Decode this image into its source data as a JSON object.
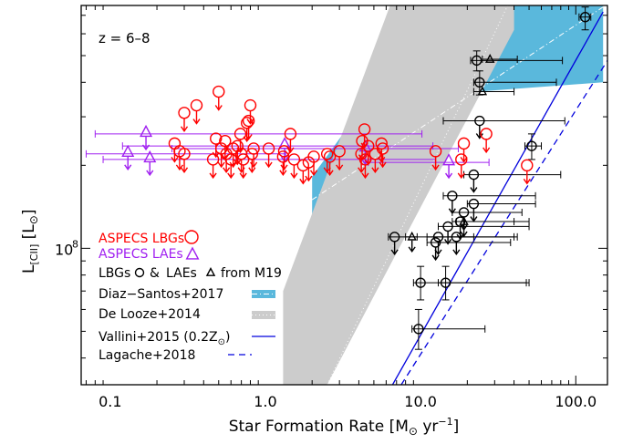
{
  "chart_data": {
    "type": "scatter",
    "panel_label": "z = 6–8",
    "xlabel": "Star Formation Rate [M☉ yr⁻¹]",
    "xlabel_parts": {
      "main": "Star Formation Rate [M",
      "sun": "⊙",
      "unit": " yr",
      "sup": "−1",
      "end": "]"
    },
    "ylabel_parts": {
      "L": "L",
      "sub": "[CII]",
      "unit": "[L",
      "sun": "⊙",
      "end": "]"
    },
    "x_scale": "log",
    "y_scale": "log",
    "xlim": [
      0.065,
      160
    ],
    "ylim": [
      32000000.0,
      760000000.0
    ],
    "x_ticks": [
      {
        "v": 0.1,
        "label": "0.1"
      },
      {
        "v": 1,
        "label": "1.0"
      },
      {
        "v": 10,
        "label": "10.0"
      },
      {
        "v": 100,
        "label": "100.0"
      }
    ],
    "y_ticks": [
      {
        "v": 100000000.0,
        "label_base": "10",
        "label_exp": "8"
      }
    ],
    "colors": {
      "lbg": "#ff0000",
      "lae": "#a020f0",
      "m19": "#000000",
      "diaz": "#5ab8dc",
      "delooze": "#cccccc",
      "vallini": "#0000dd",
      "lagache": "#0000dd"
    },
    "legend": {
      "aspecs_lbgs": "ASPECS LBGs",
      "aspecs_laes": "ASPECS LAEs",
      "m19_a": "LBGs",
      "m19_b": "&",
      "m19_c": "LAEs",
      "m19_d": "from M19",
      "diaz": "Diaz−Santos+2017",
      "delooze": "De Looze+2014",
      "vallini_a": "Vallini+2015 (0.2Z",
      "vallini_sun": "⊙",
      "vallini_b": ")",
      "lagache": "Lagache+2018"
    },
    "series": [
      {
        "name": "ASPECS LBGs",
        "marker": "circle",
        "upper_limit": true,
        "points": [
          [
            0.26,
            240000000.0
          ],
          [
            0.28,
            225000000.0
          ],
          [
            0.3,
            220000000.0
          ],
          [
            0.3,
            310000000.0
          ],
          [
            0.36,
            330000000.0
          ],
          [
            0.46,
            210000000.0
          ],
          [
            0.48,
            250000000.0
          ],
          [
            0.5,
            370000000.0
          ],
          [
            0.52,
            230000000.0
          ],
          [
            0.55,
            245000000.0
          ],
          [
            0.56,
            220000000.0
          ],
          [
            0.6,
            210000000.0
          ],
          [
            0.62,
            230000000.0
          ],
          [
            0.66,
            235000000.0
          ],
          [
            0.69,
            260000000.0
          ],
          [
            0.7,
            220000000.0
          ],
          [
            0.72,
            210000000.0
          ],
          [
            0.76,
            285000000.0
          ],
          [
            0.78,
            290000000.0
          ],
          [
            0.8,
            330000000.0
          ],
          [
            0.82,
            220000000.0
          ],
          [
            0.84,
            230000000.0
          ],
          [
            1.05,
            230000000.0
          ],
          [
            1.3,
            215000000.0
          ],
          [
            1.32,
            225000000.0
          ],
          [
            1.45,
            260000000.0
          ],
          [
            1.53,
            210000000.0
          ],
          [
            1.75,
            200000000.0
          ],
          [
            1.9,
            205000000.0
          ],
          [
            2.05,
            215000000.0
          ],
          [
            2.5,
            220000000.0
          ],
          [
            2.6,
            215000000.0
          ],
          [
            3.0,
            225000000.0
          ],
          [
            4.15,
            220000000.0
          ],
          [
            4.2,
            245000000.0
          ],
          [
            4.35,
            270000000.0
          ],
          [
            4.4,
            210000000.0
          ],
          [
            4.6,
            235000000.0
          ],
          [
            5.1,
            220000000.0
          ],
          [
            5.6,
            240000000.0
          ],
          [
            5.7,
            230000000.0
          ],
          [
            12.5,
            225000000.0
          ],
          [
            18.3,
            210000000.0
          ],
          [
            19.0,
            240000000.0
          ],
          [
            26.5,
            260000000.0
          ],
          [
            48.5,
            200000000.0
          ]
        ]
      },
      {
        "name": "ASPECS LAEs",
        "marker": "triangle",
        "upper_limit": true,
        "points": [
          [
            0.13,
            220000000.0,
            0.07,
            1.35
          ],
          [
            0.17,
            260000000.0,
            0.08,
            10.2
          ],
          [
            0.18,
            210000000.0,
            0.09,
            12.5
          ],
          [
            1.33,
            235000000.0,
            0.12,
            12.0
          ],
          [
            4.4,
            230000000.0,
            0.25,
            17.5
          ],
          [
            15.2,
            205000000.0,
            4.6,
            27.6
          ]
        ]
      },
      {
        "name": "LBGs from M19",
        "marker": "circle",
        "points": [
          {
            "x": 115,
            "y": 690000000.0,
            "xlo": 105,
            "xhi": 125,
            "yerr": [
              620000000.0,
              750000000.0
            ]
          },
          {
            "x": 23,
            "y": 480000000.0,
            "xlo": 21,
            "xhi": 82,
            "yerr": [
              440000000.0,
              520000000.0
            ]
          },
          {
            "x": 24,
            "y": 400000000.0,
            "xlo": 22,
            "xhi": 75,
            "yerr": [
              360000000.0,
              440000000.0
            ]
          },
          {
            "x": 24,
            "y": 290000000.0,
            "xlo": 14,
            "xhi": 85,
            "ul": true
          },
          {
            "x": 52,
            "y": 235000000.0,
            "xlo": 47,
            "xhi": 60,
            "yerr": [
              210000000.0,
              260000000.0
            ]
          },
          {
            "x": 22,
            "y": 185000000.0,
            "xlo": 19,
            "xhi": 80,
            "ul": true
          },
          {
            "x": 16,
            "y": 155000000.0,
            "xlo": 14,
            "xhi": 55,
            "ul": true
          },
          {
            "x": 22,
            "y": 145000000.0,
            "xlo": 20,
            "xhi": 55,
            "ul": true
          },
          {
            "x": 19,
            "y": 135000000.0,
            "xlo": 16,
            "xhi": 45,
            "ul": true
          },
          {
            "x": 18,
            "y": 125000000.0,
            "xlo": 16,
            "xhi": 50,
            "ul": true
          },
          {
            "x": 15,
            "y": 120000000.0,
            "xlo": 13,
            "xhi": 50,
            "ul": true
          },
          {
            "x": 13,
            "y": 110000000.0,
            "xlo": 11,
            "xhi": 42,
            "ul": true
          },
          {
            "x": 17,
            "y": 110000000.0,
            "xlo": 15,
            "xhi": 40,
            "ul": true
          },
          {
            "x": 6.8,
            "y": 110000000.0,
            "xlo": 6.2,
            "xhi": 22,
            "ul": true
          },
          {
            "x": 12.5,
            "y": 105000000.0,
            "xlo": 11,
            "xhi": 38,
            "ul": true
          },
          {
            "x": 10,
            "y": 75000000.0,
            "xlo": 9,
            "xhi": 50,
            "yerr": [
              65000000.0,
              86000000.0
            ]
          },
          {
            "x": 14.5,
            "y": 75000000.0,
            "xlo": 13,
            "xhi": 48,
            "yerr": [
              65000000.0,
              86000000.0
            ]
          },
          {
            "x": 9.7,
            "y": 51000000.0,
            "xlo": 8.8,
            "xhi": 26,
            "yerr": [
              43000000.0,
              60000000.0
            ]
          }
        ]
      },
      {
        "name": "LAEs from M19",
        "marker": "triangle",
        "points": [
          {
            "x": 28,
            "y": 485000000.0,
            "xlo": 25,
            "xhi": 42
          },
          {
            "x": 25,
            "y": 370000000.0,
            "xlo": 22,
            "xhi": 40
          },
          {
            "x": 8.8,
            "y": 110000000.0,
            "xlo": 8,
            "xhi": 9.5,
            "ul": true
          },
          {
            "x": 19,
            "y": 125000000.0,
            "xlo": 17,
            "xhi": 40,
            "ul": true
          }
        ]
      }
    ],
    "relations": {
      "diaz_band": {
        "x": [
          2.0,
          6.0,
          150,
          150,
          30,
          2.0
        ],
        "y": [
          128000000.0,
          350000000.0,
          400000000.0,
          1500000000.0,
          1500000000.0,
          182000000.0
        ]
      },
      "diaz_line": {
        "x": [
          2.0,
          150
        ],
        "y": [
          150000000.0,
          750000000.0
        ]
      },
      "delooze_band": {
        "x": [
          1.3,
          2.5,
          40,
          40,
          10,
          1.3
        ],
        "y": [
          32000000.0,
          32000000.0,
          620000000.0,
          1500000000.0,
          1500000000.0,
          70000000.0
        ]
      },
      "delooze_line": {
        "x": [
          2.5,
          40
        ],
        "y": [
          32000000.0,
          850000000.0
        ]
      },
      "vallini": {
        "x": [
          6.6,
          150
        ],
        "y": [
          32000000.0,
          720000000.0
        ]
      },
      "lagache": {
        "x": [
          7.5,
          160
        ],
        "y": [
          32000000.0,
          480000000.0
        ]
      }
    }
  }
}
